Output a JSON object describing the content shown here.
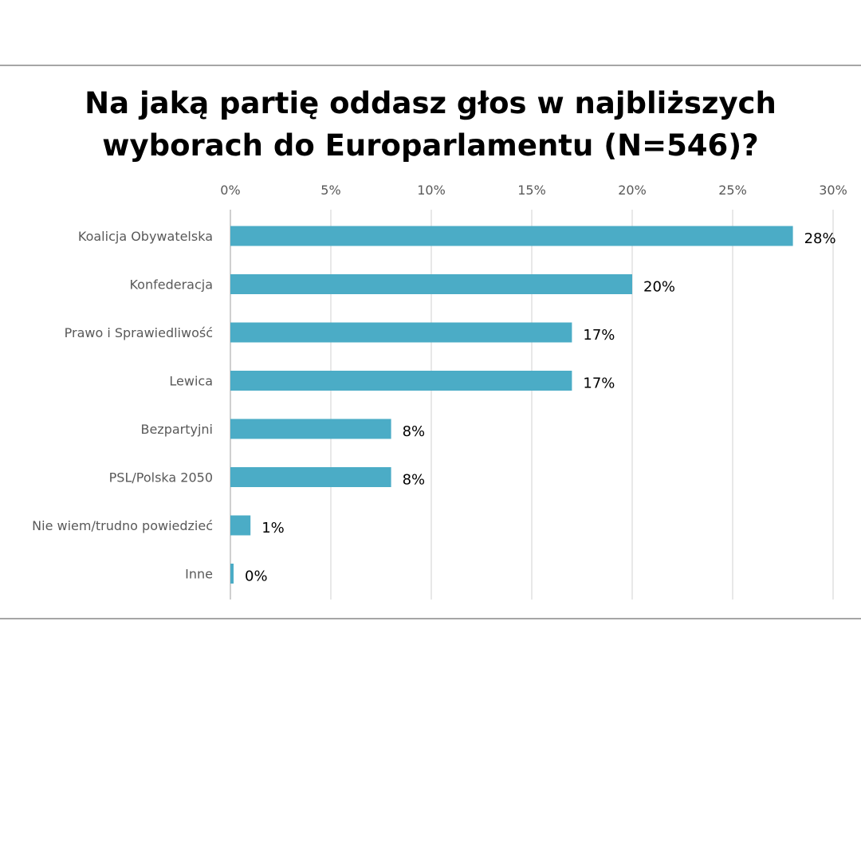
{
  "chart_data": {
    "type": "bar",
    "orientation": "horizontal",
    "title_lines": [
      "Na jaką partię oddasz głos w najbliższych",
      "wyborach do Europarlamentu (N=546)?"
    ],
    "categories": [
      "Koalicja Obywatelska",
      "Konfederacja",
      "Prawo i Sprawiedliwość",
      "Lewica",
      "Bezpartyjni",
      "PSL/Polska 2050",
      "Nie wiem/trudno powiedzieć",
      "Inne"
    ],
    "values": [
      28,
      20,
      17,
      17,
      8,
      8,
      1,
      0
    ],
    "value_labels": [
      "28%",
      "20%",
      "17%",
      "17%",
      "8%",
      "8%",
      "1%",
      "0%"
    ],
    "xticks": [
      "0%",
      "5%",
      "10%",
      "15%",
      "20%",
      "25%",
      "30%"
    ],
    "xlim": [
      0,
      30
    ],
    "x_axis_position": "top",
    "grid": true,
    "bar_color": "#4bacc6"
  }
}
